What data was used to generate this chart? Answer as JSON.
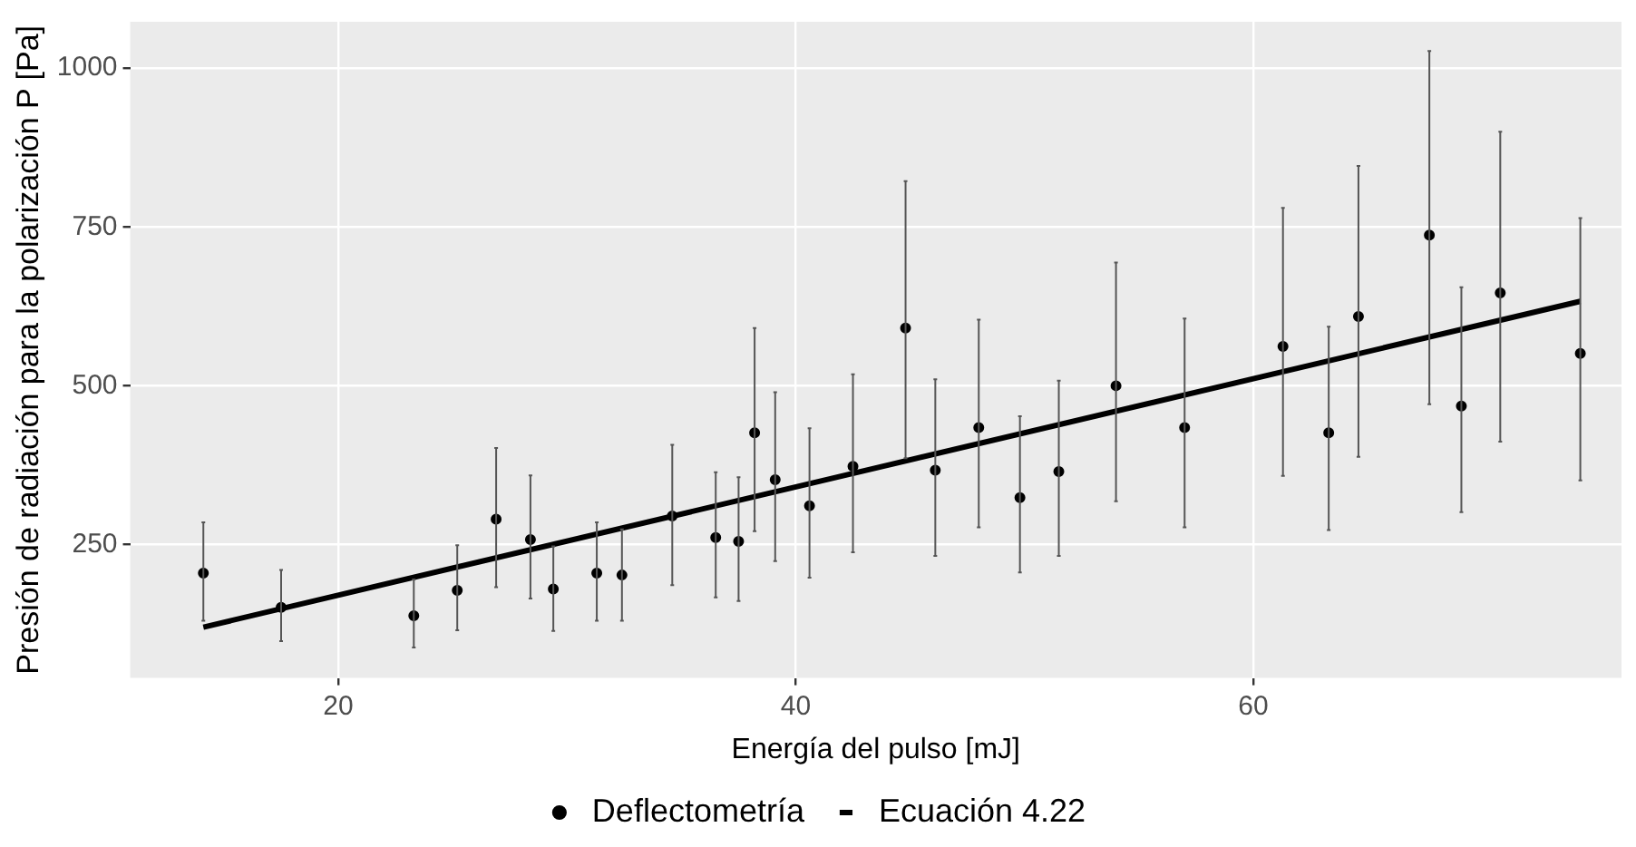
{
  "chart_data": {
    "type": "scatter",
    "xlabel": "Energía del pulso [mJ]",
    "ylabel": "Presión de radiación para la polarización P [Pa]",
    "xlim": [
      10.9,
      76.1
    ],
    "ylim": [
      40,
      1073
    ],
    "xticks": [
      20,
      40,
      60
    ],
    "yticks": [
      250,
      500,
      750,
      1000
    ],
    "grid": true,
    "legend": "bottom",
    "series": [
      {
        "name": "Deflectometría",
        "marker": "circle",
        "color": "#000000",
        "x": [
          14.1,
          17.5,
          23.3,
          25.2,
          26.9,
          28.4,
          29.4,
          31.3,
          32.4,
          34.6,
          36.5,
          37.5,
          38.2,
          39.1,
          40.6,
          42.5,
          44.8,
          46.1,
          48.0,
          49.8,
          51.5,
          54.0,
          57.0,
          61.3,
          63.3,
          64.6,
          67.7,
          69.1,
          70.8,
          74.3
        ],
        "values": [
          205,
          151,
          138,
          178,
          290,
          258,
          180,
          205,
          202,
          295,
          261,
          255,
          426,
          352,
          311,
          373,
          591,
          367,
          434,
          324,
          365,
          500,
          434,
          562,
          426,
          609,
          737,
          468,
          646,
          551
        ],
        "errors": [
          [
            130,
            285
          ],
          [
            98,
            210
          ],
          [
            88,
            195
          ],
          [
            115,
            249
          ],
          [
            183,
            402
          ],
          [
            165,
            359
          ],
          [
            114,
            247
          ],
          [
            130,
            285
          ],
          [
            130,
            274
          ],
          [
            186,
            407
          ],
          [
            167,
            364
          ],
          [
            161,
            356
          ],
          [
            271,
            591
          ],
          [
            224,
            490
          ],
          [
            198,
            433
          ],
          [
            238,
            518
          ],
          [
            386,
            822
          ],
          [
            232,
            510
          ],
          [
            277,
            604
          ],
          [
            206,
            452
          ],
          [
            232,
            508
          ],
          [
            318,
            694
          ],
          [
            277,
            606
          ],
          [
            358,
            780
          ],
          [
            273,
            593
          ],
          [
            388,
            846
          ],
          [
            471,
            1027
          ],
          [
            301,
            655
          ],
          [
            412,
            900
          ],
          [
            351,
            764
          ]
        ]
      },
      {
        "name": "Ecuación 4.22",
        "type": "line",
        "color": "#000000",
        "x": [
          14.1,
          74.3
        ],
        "values": [
          120,
          633
        ]
      }
    ]
  }
}
